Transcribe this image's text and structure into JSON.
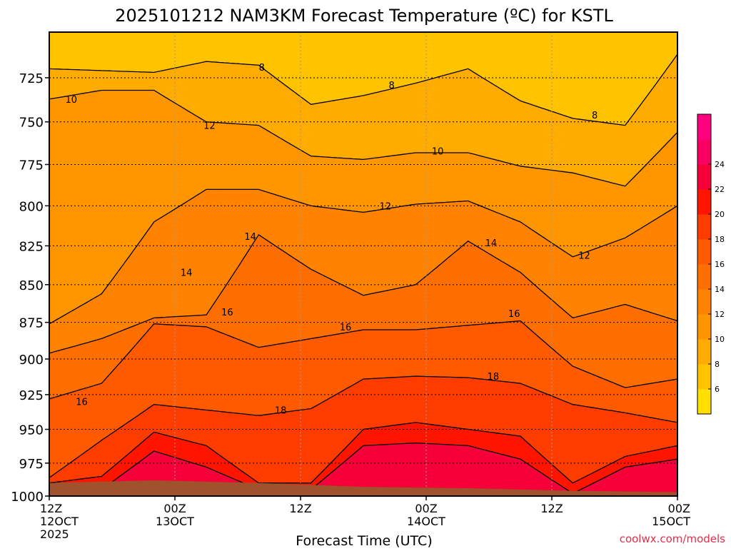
{
  "chart_data": {
    "type": "contour",
    "title": "2025101212 NAM3KM Forecast Temperature (ºC) for KSTL",
    "xlabel": "Forecast Time (UTC)",
    "credit": "coolwx.com/models",
    "y_axis": {
      "scale": "log",
      "range": [
        700,
        1000
      ],
      "ticks": [
        725,
        750,
        775,
        800,
        825,
        850,
        875,
        900,
        925,
        950,
        975,
        1000
      ],
      "tick_labels": [
        "725",
        "750",
        "775",
        "800",
        "825",
        "850",
        "875",
        "900",
        "925",
        "950",
        "975",
        "1000"
      ]
    },
    "x_axis": {
      "range_hours": [
        0,
        60
      ],
      "ticks": [
        {
          "hour": 0,
          "line1": "12Z",
          "line2": "12OCT",
          "line3": "2025"
        },
        {
          "hour": 12,
          "line1": "00Z",
          "line2": "13OCT",
          "line3": ""
        },
        {
          "hour": 24,
          "line1": "12Z",
          "line2": "",
          "line3": ""
        },
        {
          "hour": 36,
          "line1": "00Z",
          "line2": "14OCT",
          "line3": ""
        },
        {
          "hour": 48,
          "line1": "12Z",
          "line2": "",
          "line3": ""
        },
        {
          "hour": 60,
          "line1": "00Z",
          "line2": "15OCT",
          "line3": ""
        }
      ]
    },
    "grid": true,
    "colorbar": {
      "placement": "right",
      "bounds": [
        4,
        6,
        8,
        10,
        12,
        14,
        16,
        18,
        20,
        22,
        24,
        26
      ],
      "colors": [
        "#FFE000",
        "#FFC300",
        "#FFAB00",
        "#FF9600",
        "#FF8200",
        "#FF6E00",
        "#FF5A00",
        "#FF3C00",
        "#FF1400",
        "#F50038",
        "#F90062",
        "#FF0080"
      ],
      "labels": [
        "6",
        "8",
        "10",
        "12",
        "14",
        "16",
        "18",
        "20",
        "22",
        "24"
      ]
    },
    "ground_color": "#A0522D",
    "contour_labels": [
      {
        "text": "8",
        "hour": 20.3,
        "p": 719
      },
      {
        "text": "8",
        "hour": 32.7,
        "p": 729
      },
      {
        "text": "8",
        "hour": 52.1,
        "p": 746
      },
      {
        "text": "10",
        "hour": 2.1,
        "p": 737
      },
      {
        "text": "10",
        "hour": 37.1,
        "p": 767
      },
      {
        "text": "12",
        "hour": 15.3,
        "p": 752
      },
      {
        "text": "12",
        "hour": 32.1,
        "p": 800
      },
      {
        "text": "12",
        "hour": 51.1,
        "p": 831
      },
      {
        "text": "14",
        "hour": 19.2,
        "p": 819
      },
      {
        "text": "14",
        "hour": 13.1,
        "p": 842
      },
      {
        "text": "14",
        "hour": 42.2,
        "p": 823
      },
      {
        "text": "16",
        "hour": 17.0,
        "p": 868
      },
      {
        "text": "16",
        "hour": 28.3,
        "p": 878
      },
      {
        "text": "16",
        "hour": 44.4,
        "p": 869
      },
      {
        "text": "16",
        "hour": 3.1,
        "p": 930
      },
      {
        "text": "18",
        "hour": 22.1,
        "p": 936
      },
      {
        "text": "18",
        "hour": 42.4,
        "p": 912
      }
    ],
    "contour_levels": [
      {
        "value": 8,
        "hours": [
          0,
          5,
          10,
          15,
          20,
          25,
          30,
          35,
          40,
          45,
          50,
          55,
          60
        ],
        "p": [
          720,
          721,
          722,
          716,
          718,
          740,
          735,
          728,
          720,
          738,
          748,
          752,
          712
        ]
      },
      {
        "value": 10,
        "hours": [
          0,
          5,
          10,
          15,
          20,
          25,
          30,
          35,
          40,
          45,
          50,
          55,
          60
        ],
        "p": [
          737,
          732,
          732,
          750,
          752,
          770,
          772,
          768,
          768,
          776,
          780,
          788,
          756
        ]
      },
      {
        "value": 12,
        "hours": [
          0,
          5,
          10,
          15,
          20,
          25,
          30,
          35,
          40,
          45,
          50,
          55,
          60
        ],
        "p": [
          876,
          856,
          810,
          790,
          790,
          800,
          804,
          799,
          797,
          810,
          832,
          820,
          800
        ]
      },
      {
        "value": 14,
        "hours": [
          0,
          5,
          10,
          15,
          20,
          25,
          30,
          35,
          40,
          45,
          50,
          55,
          60
        ],
        "p": [
          896,
          886,
          872,
          870,
          818,
          840,
          857,
          850,
          822,
          842,
          872,
          863,
          874
        ]
      },
      {
        "value": 16,
        "hours": [
          0,
          5,
          10,
          15,
          20,
          25,
          30,
          35,
          40,
          45,
          50,
          55,
          60
        ],
        "p": [
          928,
          917,
          876,
          878,
          892,
          886,
          880,
          880,
          877,
          874,
          905,
          920,
          914
        ]
      },
      {
        "value": 18,
        "hours": [
          0,
          5,
          10,
          15,
          20,
          25,
          30,
          35,
          40,
          45,
          50,
          55,
          60
        ],
        "p": [
          986,
          958,
          932,
          936,
          940,
          935,
          914,
          912,
          913,
          917,
          932,
          938,
          945
        ]
      },
      {
        "value": 20,
        "hours": [
          0,
          5,
          10,
          15,
          20,
          25,
          30,
          35,
          40,
          45,
          50,
          55,
          60
        ],
        "p": [
          990,
          985,
          952,
          962,
          990,
          990,
          950,
          945,
          950,
          955,
          990,
          970,
          962
        ]
      },
      {
        "value": 22,
        "hours": [
          0,
          5,
          10,
          15,
          20,
          25,
          30,
          35,
          40,
          45,
          50,
          55,
          60
        ],
        "p": [
          995,
          995,
          966,
          978,
          995,
          995,
          962,
          960,
          962,
          972,
          998,
          978,
          972
        ]
      }
    ],
    "surface_pressure": {
      "hours": [
        0,
        10,
        20,
        30,
        40,
        50,
        60
      ],
      "p": [
        990,
        988,
        990,
        993,
        994,
        996,
        997
      ]
    }
  }
}
